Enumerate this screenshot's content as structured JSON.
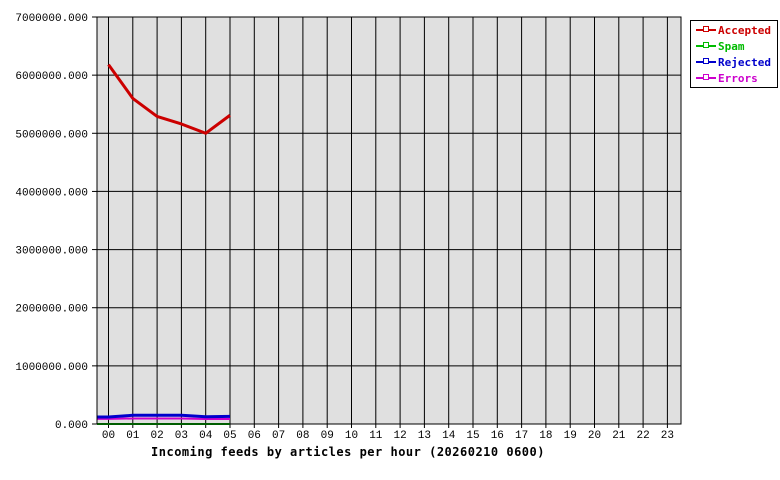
{
  "page": {
    "background_color": "#ffffff"
  },
  "chart_data": {
    "type": "line",
    "title": "Incoming feeds by articles per hour (20260210 0600)",
    "xlabel": "",
    "ylabel": "",
    "categories": [
      "00",
      "01",
      "02",
      "03",
      "04",
      "05",
      "06",
      "07",
      "08",
      "09",
      "10",
      "11",
      "12",
      "13",
      "14",
      "15",
      "16",
      "17",
      "18",
      "19",
      "20",
      "21",
      "22",
      "23"
    ],
    "ylim": [
      0,
      7000000
    ],
    "y_tick_step": 1000000,
    "y_tick_labels": [
      "0.000",
      "1000000.000",
      "2000000.000",
      "3000000.000",
      "4000000.000",
      "5000000.000",
      "6000000.000",
      "7000000.000"
    ],
    "grid": "both",
    "grid_color": "#000000",
    "plot_bg_color": "#e0e0e0",
    "axis_color": "#000000",
    "legend_position": "top-right-outside",
    "series": [
      {
        "name": "Accepted",
        "color": "#cc0000",
        "marker": "open-square",
        "line_width": 3,
        "starts_at_border": false,
        "x": [
          0,
          1,
          2,
          3,
          4,
          5
        ],
        "values": [
          6180000,
          5600000,
          5290000,
          5160000,
          5000000,
          5310000
        ]
      },
      {
        "name": "Spam",
        "color": "#00bb00",
        "marker": "open-square",
        "line_width": 2,
        "starts_at_border": true,
        "x": [
          0,
          1,
          2,
          3,
          4,
          5
        ],
        "values": [
          0,
          0,
          0,
          0,
          0,
          0
        ]
      },
      {
        "name": "Rejected",
        "color": "#0000cc",
        "marker": "open-square",
        "line_width": 3,
        "starts_at_border": true,
        "x": [
          0,
          1,
          2,
          3,
          4,
          5
        ],
        "values": [
          120000,
          150000,
          150000,
          150000,
          125000,
          132000
        ]
      },
      {
        "name": "Errors",
        "color": "#cc00cc",
        "marker": "open-square",
        "line_width": 2,
        "starts_at_border": true,
        "x": [
          0,
          1,
          2,
          3,
          4,
          5
        ],
        "values": [
          88000,
          95000,
          95000,
          95000,
          85000,
          86000
        ]
      }
    ]
  }
}
